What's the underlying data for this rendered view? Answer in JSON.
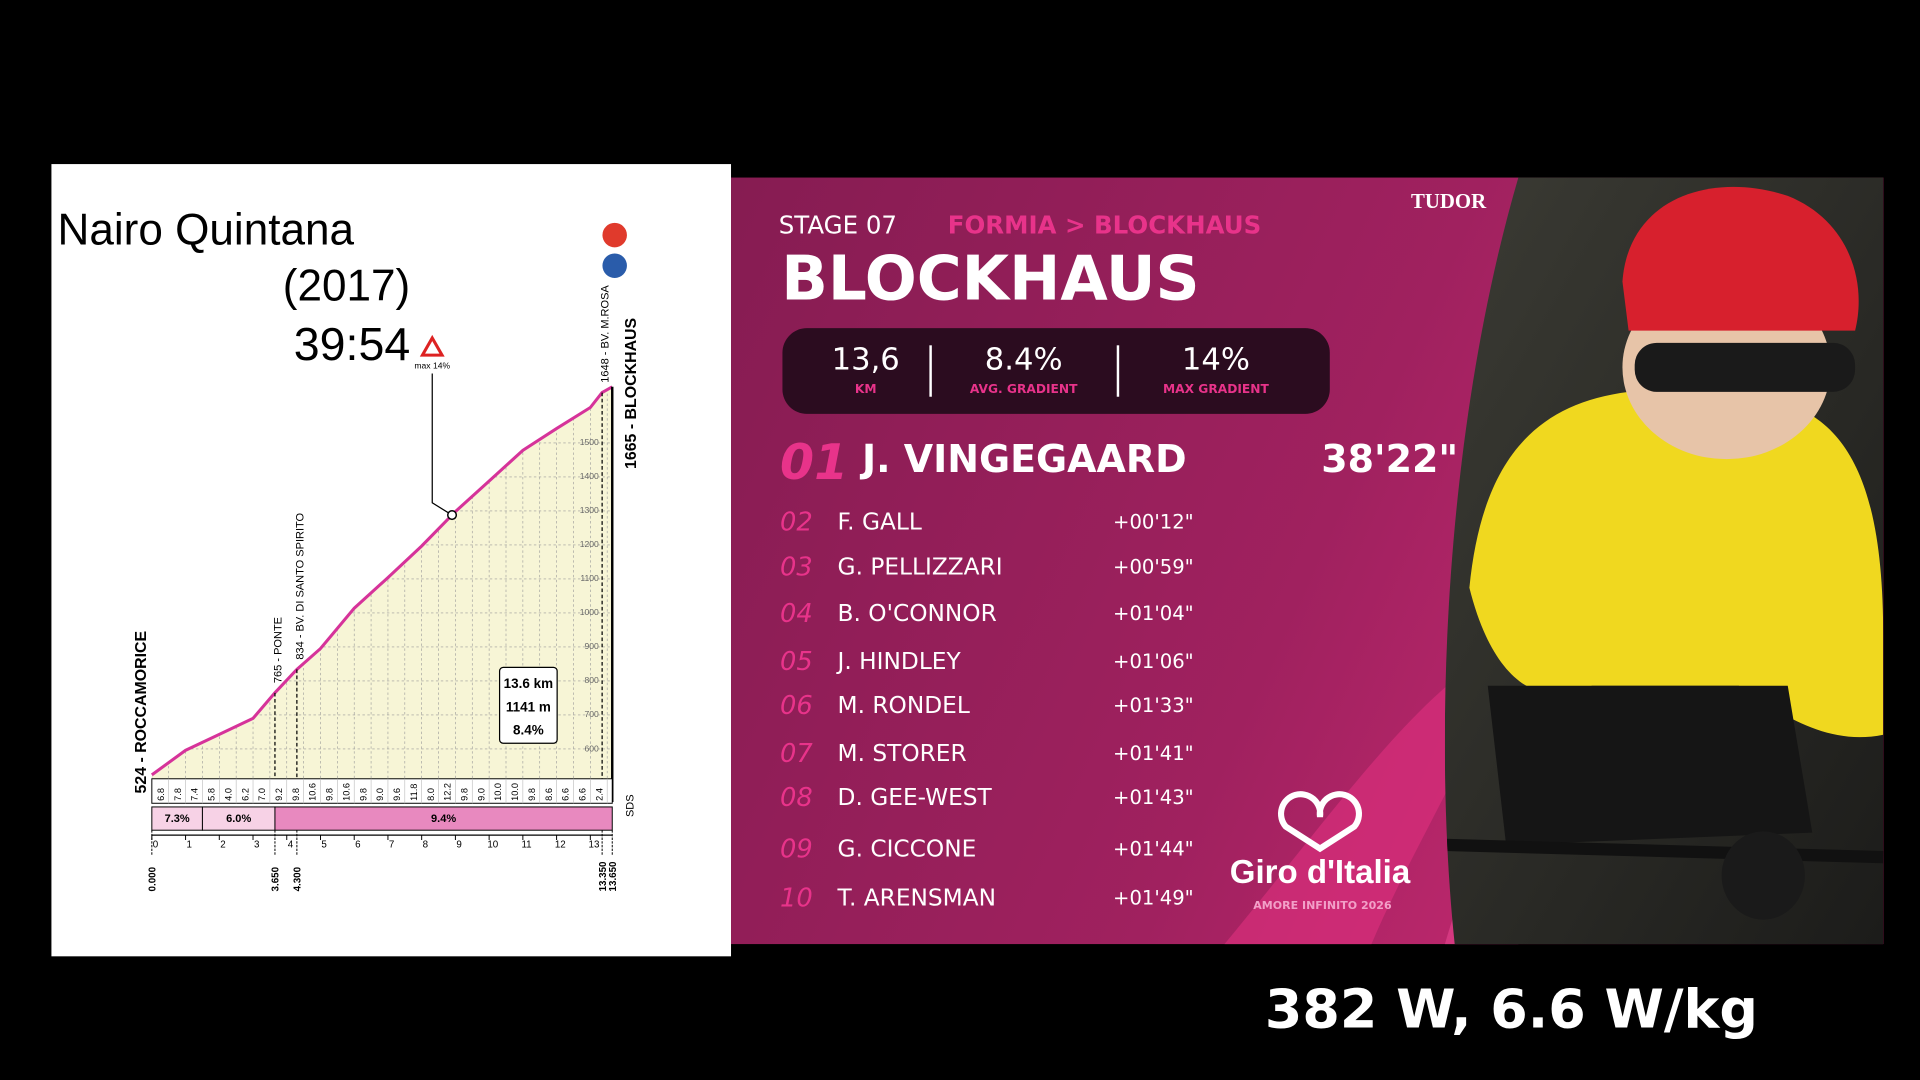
{
  "comparison": {
    "rider": "Nairo Quintana",
    "year": "(2017)",
    "time": "39:54"
  },
  "power": "382 W, 6.6 W/kg",
  "chart_data": {
    "type": "area",
    "x": [
      0,
      1,
      2,
      3,
      3.65,
      4.3,
      5,
      6,
      7,
      8,
      9,
      10,
      11,
      12,
      13,
      13.35,
      13.65
    ],
    "values": [
      524,
      596,
      643,
      690,
      765,
      834,
      895,
      1014,
      1104,
      1197,
      1298,
      1388,
      1478,
      1542,
      1604,
      1648,
      1665
    ],
    "color": "#d6339a",
    "fill": "#f7f5d6",
    "xlim": [
      0,
      13.65
    ],
    "ylim": [
      480,
      1760
    ],
    "xticks": [
      0,
      1,
      2,
      3,
      4,
      5,
      6,
      7,
      8,
      9,
      10,
      11,
      12,
      13
    ],
    "yticks": [
      600,
      700,
      800,
      900,
      1000,
      1100,
      1200,
      1300,
      1400,
      1500
    ],
    "grid": true,
    "distance_ticks": [
      {
        "value": 0,
        "label": "0.000"
      },
      {
        "value": 3.65,
        "label": "3.650"
      },
      {
        "value": 4.3,
        "label": "4.300"
      },
      {
        "value": 13.35,
        "label": "13.350"
      },
      {
        "value": 13.65,
        "label": "13.650"
      }
    ],
    "gradient_labels": [
      "6.8",
      "7.8",
      "7.4",
      "5.8",
      "4.0",
      "6.2",
      "7.0",
      "9.2",
      "9.8",
      "10.6",
      "9.8",
      "10.6",
      "9.8",
      "9.0",
      "9.6",
      "11.8",
      "8.0",
      "12.2",
      "9.8",
      "9.0",
      "10.0",
      "10.0",
      "9.8",
      "8.6",
      "6.6",
      "6.6",
      "2.4"
    ],
    "segments": [
      {
        "from": 0,
        "to": 1.5,
        "value": 7.3,
        "label": "7.3%"
      },
      {
        "from": 1.5,
        "to": 3.65,
        "value": 6.0,
        "label": "6.0%"
      },
      {
        "from": 3.65,
        "to": 13.65,
        "value": 9.4,
        "label": "9.4%"
      }
    ],
    "start_label": "524 - ROCCAMORICE",
    "finish_label": "1665 - BLOCKHAUS",
    "waypoints": [
      {
        "x": 3.65,
        "label": "765 - PONTE"
      },
      {
        "x": 4.3,
        "label": "834 - BV. DI SANTO SPIRITO"
      },
      {
        "x": 13.35,
        "label": "1648 - BV. M.ROSA"
      }
    ],
    "max_annotation": {
      "x": 8.9,
      "label": "max 14%"
    },
    "summary": [
      "13.6 km",
      "1141 m",
      "8.4%"
    ],
    "sds_label": "SDS"
  },
  "results": {
    "stage": "STAGE 07",
    "route": "FORMIA > BLOCKHAUS",
    "climb": "BLOCKHAUS",
    "sponsor": "TUDOR",
    "stats": [
      {
        "value": "13,6",
        "label": "KM"
      },
      {
        "value": "8.4%",
        "label": "AVG. GRADIENT"
      },
      {
        "value": "14%",
        "label": "MAX GRADIENT"
      }
    ],
    "winner": {
      "pos": "01",
      "rider": "J. VINGEGAARD",
      "time": "38'22\""
    },
    "rows": [
      {
        "pos": "02",
        "rider": "F. GALL",
        "time": "+00'12\""
      },
      {
        "pos": "03",
        "rider": "G. PELLIZZARI",
        "time": "+00'59\""
      },
      {
        "pos": "04",
        "rider": "B. O'CONNOR",
        "time": "+01'04\""
      },
      {
        "pos": "05",
        "rider": "J. HINDLEY",
        "time": "+01'06\""
      },
      {
        "pos": "06",
        "rider": "M. RONDEL",
        "time": "+01'33\""
      },
      {
        "pos": "07",
        "rider": "M. STORER",
        "time": "+01'41\""
      },
      {
        "pos": "08",
        "rider": "D. GEE-WEST",
        "time": "+01'43\""
      },
      {
        "pos": "09",
        "rider": "G. CICCONE",
        "time": "+01'44\""
      },
      {
        "pos": "10",
        "rider": "T. ARENSMAN",
        "time": "+01'49\""
      }
    ],
    "brand": "Giro d'Italia",
    "tagline": "AMORE INFINITO 2026"
  }
}
